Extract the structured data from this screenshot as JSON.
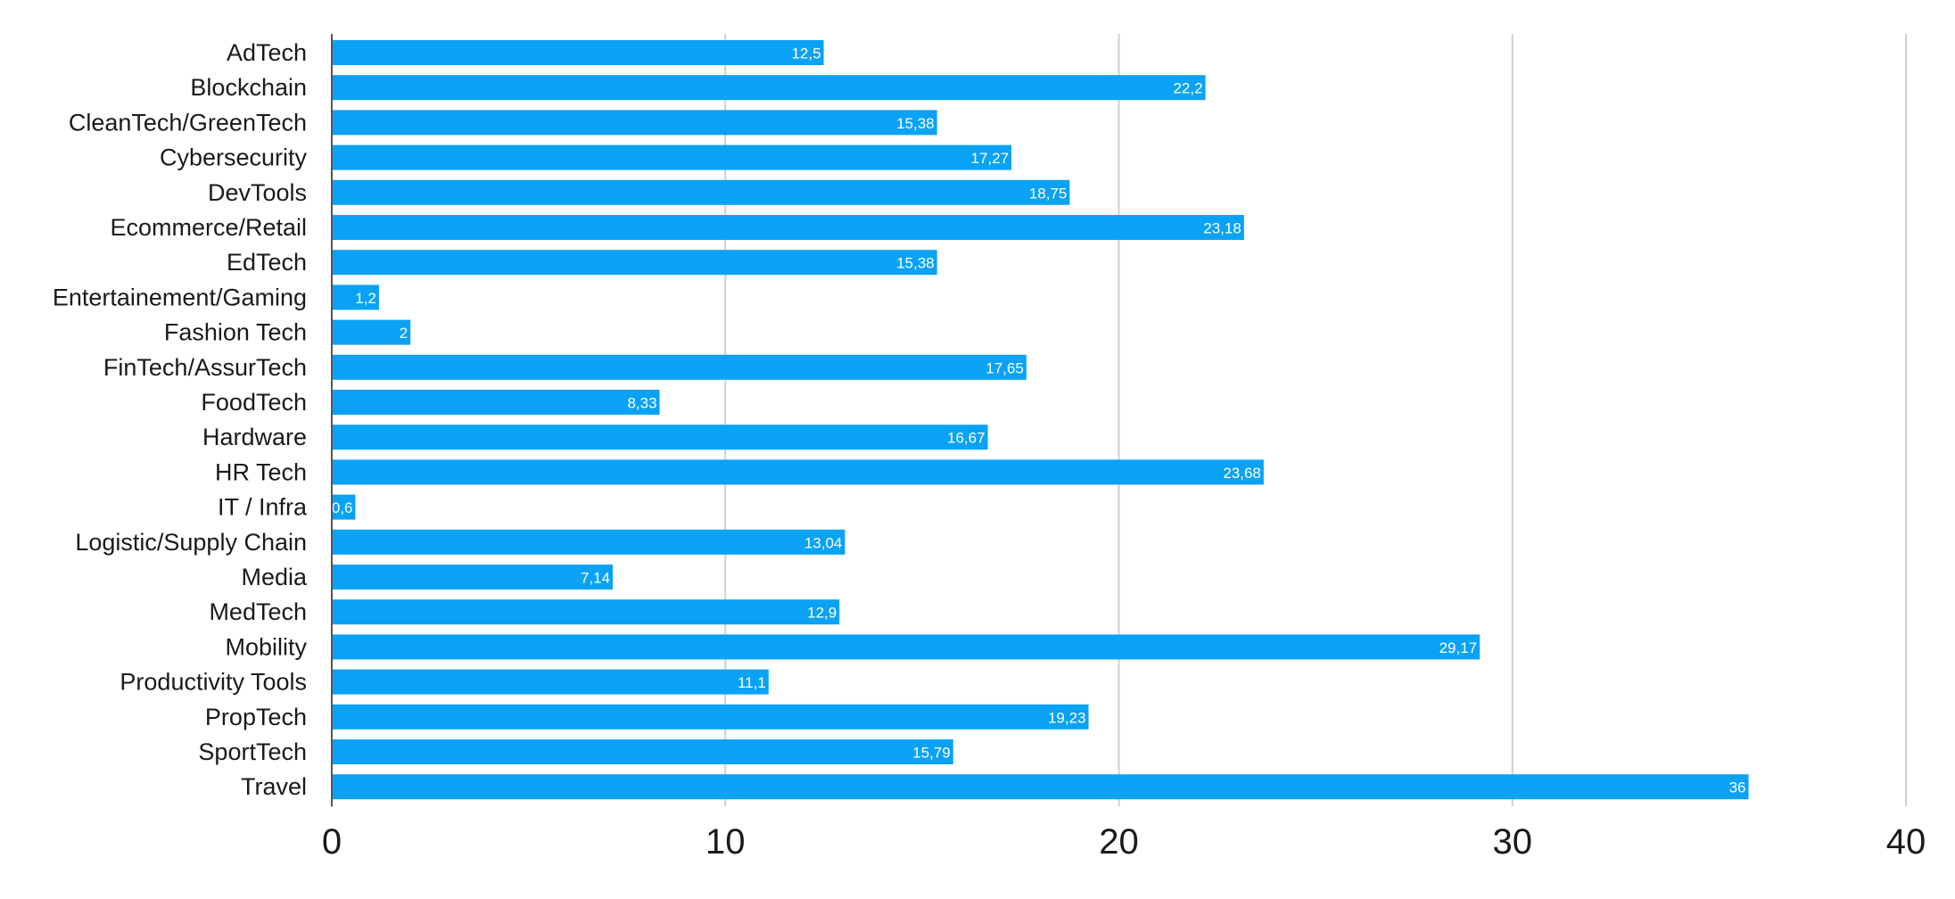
{
  "chart_data": {
    "type": "bar",
    "orientation": "horizontal",
    "categories": [
      "AdTech",
      "Blockchain",
      "CleanTech/GreenTech",
      "Cybersecurity",
      "DevTools",
      "Ecommerce/Retail",
      "EdTech",
      "Entertainement/Gaming",
      "Fashion Tech",
      "FinTech/AssurTech",
      "FoodTech",
      "Hardware",
      "HR Tech",
      "IT / Infra",
      "Logistic/Supply Chain",
      "Media",
      "MedTech",
      "Mobility",
      "Productivity Tools",
      "PropTech",
      "SportTech",
      "Travel"
    ],
    "values": [
      12.5,
      22.2,
      15.38,
      17.27,
      18.75,
      23.18,
      15.38,
      1.2,
      2,
      17.65,
      8.33,
      16.67,
      23.68,
      0.6,
      13.04,
      7.14,
      12.9,
      29.17,
      11.1,
      19.23,
      15.79,
      36
    ],
    "data_labels": [
      "12,5",
      "22,2",
      "15,38",
      "17,27",
      "18,75",
      "23,18",
      "15,38",
      "1,2",
      "2",
      "17,65",
      "8,33",
      "16,67",
      "23,68",
      "0,6",
      "13,04",
      "7,14",
      "12,9",
      "29,17",
      "11,1",
      "19,23",
      "15,79",
      "36"
    ],
    "x_ticks": [
      "0",
      "10",
      "20",
      "30",
      "40"
    ],
    "xlim": [
      0,
      40
    ],
    "grid": true,
    "title": "",
    "xlabel": "",
    "ylabel": "",
    "bar_color": "#0aa2f5"
  }
}
